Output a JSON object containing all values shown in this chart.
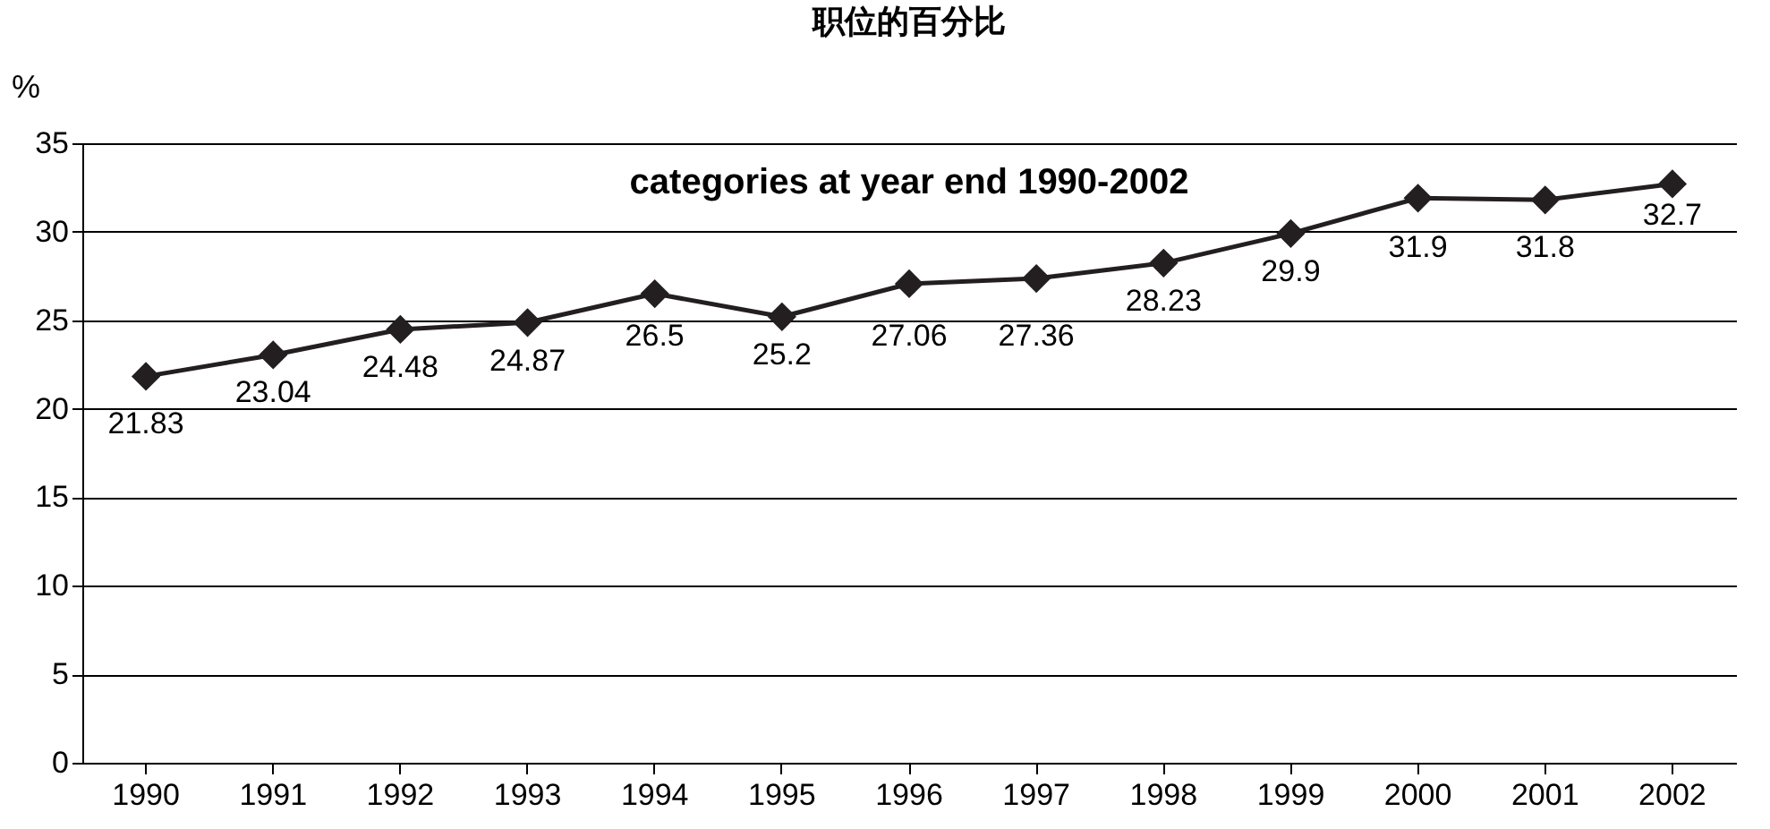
{
  "chart_data": {
    "type": "line",
    "title": "职位的百分比",
    "subtitle": "categories at year end 1990-2002",
    "ylabel": "%",
    "categories": [
      "1990",
      "1991",
      "1992",
      "1993",
      "1994",
      "1995",
      "1996",
      "1997",
      "1998",
      "1999",
      "2000",
      "2001",
      "2002"
    ],
    "series": [
      {
        "color": "#231f20",
        "values": [
          21.83,
          23.04,
          24.48,
          24.87,
          26.5,
          25.2,
          27.06,
          27.36,
          28.23,
          29.9,
          31.9,
          31.8,
          32.7
        ]
      }
    ],
    "ylim": [
      0,
      35
    ],
    "yticks": [
      0,
      5,
      10,
      15,
      20,
      25,
      30,
      35
    ],
    "grid": "y",
    "marker": "diamond",
    "line_style": "solid",
    "data_labels": true
  }
}
